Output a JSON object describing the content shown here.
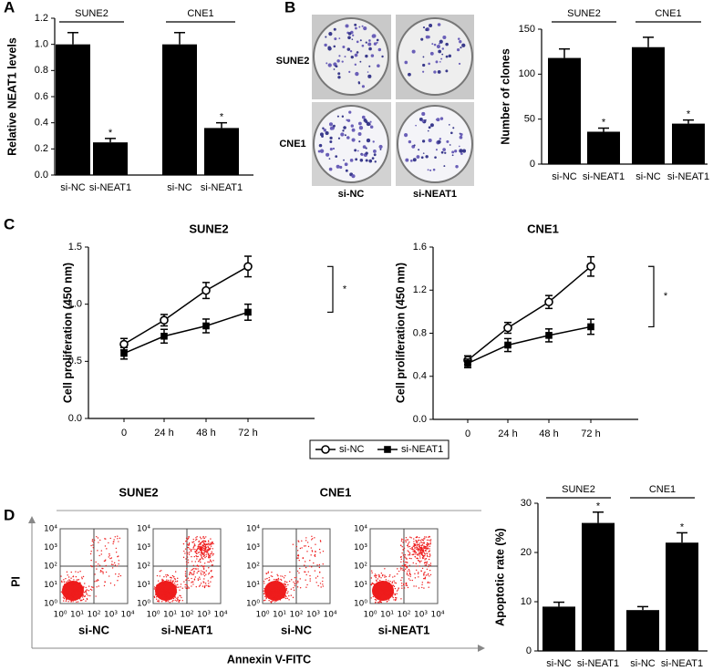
{
  "figure": {
    "panel_labels": [
      "A",
      "B",
      "C",
      "D"
    ],
    "colony": {
      "rows": [
        "SUNE2",
        "CNE1"
      ],
      "columns": [
        "si-NC",
        "si-NEAT1"
      ]
    },
    "flow": {
      "groups": [
        "SUNE2",
        "CNE1"
      ],
      "conditions": [
        "si-NC",
        "si-NEAT1",
        "si-NC",
        "si-NEAT1"
      ],
      "tick_labels": [
        "10⁰",
        "10¹",
        "10²",
        "10³",
        "10⁴"
      ],
      "xlabel": "Annexin V-FITC",
      "ylabel": "PI"
    }
  },
  "chart_data": [
    {
      "type": "bar",
      "ylabel": "Relative NEAT1 levels",
      "categories": [
        "si-NC",
        "si-NEAT1",
        "si-NC",
        "si-NEAT1"
      ],
      "groups": [
        "SUNE2",
        "CNE1"
      ],
      "values": [
        1.0,
        0.25,
        1.0,
        0.36
      ],
      "errors": [
        0.09,
        0.03,
        0.09,
        0.04
      ],
      "significance": [
        null,
        "*",
        null,
        "*"
      ],
      "color": "#000000",
      "ylim": [
        0,
        1.2
      ],
      "yticks": [
        {
          "value": 0,
          "label": "0.0"
        },
        0.2,
        0.4,
        0.6,
        0.8,
        {
          "value": 1,
          "label": "1.0"
        },
        1.2
      ],
      "grid": false
    },
    {
      "type": "bar",
      "ylabel": "Number of clones",
      "categories": [
        "si-NC",
        "si-NEAT1",
        "si-NC",
        "si-NEAT1"
      ],
      "groups": [
        "SUNE2",
        "CNE1"
      ],
      "values": [
        118,
        36,
        130,
        45
      ],
      "errors": [
        10,
        4,
        11,
        4
      ],
      "significance": [
        null,
        "*",
        null,
        "*"
      ],
      "color": "#000000",
      "ylim": [
        0,
        150
      ],
      "yticks": [
        0,
        50,
        100,
        150
      ],
      "grid": false
    },
    {
      "type": "line",
      "title": "SUNE2",
      "ylabel": "Cell proliferation (450 nm)",
      "x": [
        "0",
        "24 h",
        "48 h",
        "72 h"
      ],
      "series": [
        {
          "name": "si-NC",
          "marker": "circle-open",
          "color": "#000000",
          "values": [
            0.65,
            0.86,
            1.12,
            1.33
          ],
          "errors": [
            0.05,
            0.05,
            0.07,
            0.09
          ]
        },
        {
          "name": "si-NEAT1",
          "marker": "square",
          "color": "#000000",
          "values": [
            0.57,
            0.72,
            0.81,
            0.93
          ],
          "errors": [
            0.05,
            0.06,
            0.06,
            0.07
          ]
        }
      ],
      "annotation": "*",
      "legend": true,
      "ylim": [
        0,
        1.5
      ],
      "yticks": [
        {
          "value": 0,
          "label": "0.0"
        },
        0.5,
        {
          "value": 1,
          "label": "1.0"
        },
        1.5
      ],
      "grid": false
    },
    {
      "type": "line",
      "title": "CNE1",
      "ylabel": "Cell proliferation (450 nm)",
      "x": [
        "0",
        "24 h",
        "48 h",
        "72 h"
      ],
      "series": [
        {
          "name": "si-NC",
          "marker": "circle-open",
          "color": "#000000",
          "values": [
            0.55,
            0.85,
            1.09,
            1.42
          ],
          "errors": [
            0.04,
            0.05,
            0.06,
            0.09
          ]
        },
        {
          "name": "si-NEAT1",
          "marker": "square",
          "color": "#000000",
          "values": [
            0.52,
            0.69,
            0.78,
            0.86
          ],
          "errors": [
            0.04,
            0.06,
            0.06,
            0.07
          ]
        }
      ],
      "annotation": "*",
      "legend": false,
      "ylim": [
        0,
        1.6
      ],
      "yticks": [
        {
          "value": 0,
          "label": "0.0"
        },
        0.4,
        0.8,
        1.2,
        1.6
      ],
      "grid": false
    },
    {
      "type": "bar",
      "ylabel": "Apoptotic rate (%)",
      "categories": [
        "si-NC",
        "si-NEAT1",
        "si-NC",
        "si-NEAT1"
      ],
      "groups": [
        "SUNE2",
        "CNE1"
      ],
      "values": [
        9,
        26,
        8.3,
        22
      ],
      "errors": [
        0.9,
        2.2,
        0.7,
        2.0
      ],
      "significance": [
        null,
        "*",
        null,
        "*"
      ],
      "color": "#000000",
      "ylim": [
        0,
        30
      ],
      "yticks": [
        0,
        10,
        20,
        30
      ],
      "grid": false
    }
  ]
}
